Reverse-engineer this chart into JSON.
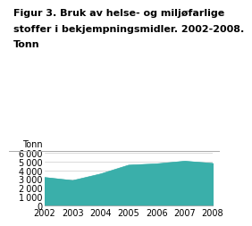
{
  "title_line1": "Figur 3. Bruk av helse- og miljøfarlige",
  "title_line2": "stoffer i bekjempningsmidler. 2002-2008.",
  "title_line3": "Tonn",
  "ylabel": "Tonn",
  "years": [
    2002,
    2003,
    2004,
    2005,
    2006,
    2007,
    2008
  ],
  "values": [
    3200,
    2850,
    3600,
    4600,
    4750,
    5050,
    4800
  ],
  "fill_color": "#3aafaa",
  "line_color": "#3aafaa",
  "ylim": [
    0,
    6000
  ],
  "yticks": [
    0,
    1000,
    2000,
    3000,
    4000,
    5000,
    6000
  ],
  "background_color": "#ffffff",
  "grid_color": "#cccccc",
  "title_fontsize": 8.0,
  "ylabel_fontsize": 7.0,
  "tick_fontsize": 7.0,
  "header_line_color": "#aaaaaa",
  "spine_bottom_color": "#aaaaaa"
}
